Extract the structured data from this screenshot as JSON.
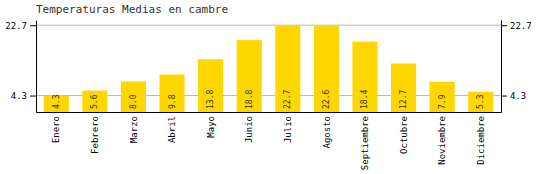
{
  "chart_data": {
    "type": "bar",
    "title": "Temperaturas Medias en cambre",
    "categories": [
      "Enero",
      "Febrero",
      "Marzo",
      "Abril",
      "Mayo",
      "Junio",
      "Julio",
      "Agosto",
      "Septiembre",
      "Octubre",
      "Noviembre",
      "Diciembre"
    ],
    "values": [
      4.3,
      5.6,
      8.0,
      9.8,
      13.8,
      18.8,
      22.7,
      22.6,
      18.4,
      12.7,
      7.9,
      5.3
    ],
    "value_labels": [
      "4.3",
      "5.6",
      "8.0",
      "9.8",
      "13.8",
      "18.8",
      "22.7",
      "22.6",
      "18.4",
      "12.7",
      "7.9",
      "5.3"
    ],
    "color": "#FFD700",
    "ylim": [
      0,
      24.062
    ],
    "yticks": [
      4.3,
      22.7
    ],
    "grid": true,
    "data_labels": true
  }
}
